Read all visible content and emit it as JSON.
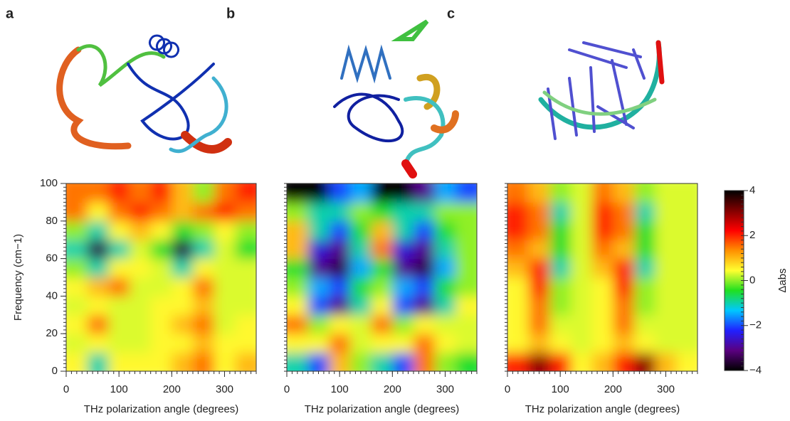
{
  "chart_data": [
    {
      "type": "heatmap",
      "panel_label": "a",
      "xlabel": "THz polarization angle (degrees)",
      "ylabel": "Frequency (cm−1)",
      "x_bins": [
        0,
        40,
        80,
        120,
        160,
        200,
        240,
        280,
        320,
        360
      ],
      "y_bins": [
        0,
        10,
        20,
        30,
        40,
        50,
        60,
        70,
        80,
        90,
        100
      ],
      "xlim": [
        0,
        360
      ],
      "xticks": [
        0,
        100,
        200,
        300
      ],
      "ylim": [
        0,
        100
      ],
      "yticks": [
        0,
        20,
        40,
        60,
        80,
        100
      ],
      "values": [
        [
          0.5,
          -1,
          0.5,
          0.5,
          0.5,
          1,
          1.5,
          0.5,
          1
        ],
        [
          0.3,
          0.5,
          0.3,
          0.3,
          0.5,
          0.5,
          1,
          0.5,
          0.5
        ],
        [
          0.5,
          1.5,
          0.3,
          0.3,
          0.5,
          1,
          1.5,
          0.3,
          0.5
        ],
        [
          0.3,
          0.5,
          0.3,
          0.3,
          0.5,
          0.5,
          1,
          0.3,
          0.3
        ],
        [
          0.5,
          1,
          1.5,
          0.3,
          0.3,
          0.5,
          1.5,
          0.3,
          0.3
        ],
        [
          0,
          -1,
          0.5,
          0.5,
          0.3,
          -1,
          0.5,
          0.3,
          0.3
        ],
        [
          -1,
          -3.5,
          -1,
          0.3,
          -0.5,
          -3.5,
          -1,
          0.3,
          -0.5
        ],
        [
          0,
          -1,
          0.5,
          1,
          0.5,
          -0.5,
          0,
          0.5,
          0
        ],
        [
          1.5,
          0.5,
          1.5,
          2,
          1.5,
          1,
          1.5,
          2,
          1.5
        ],
        [
          1.5,
          1.5,
          2,
          1.5,
          2,
          1,
          0,
          1.5,
          2
        ]
      ]
    },
    {
      "type": "heatmap",
      "panel_label": "b",
      "xlabel": "THz polarization angle (degrees)",
      "x_bins": [
        0,
        40,
        80,
        120,
        160,
        200,
        240,
        280,
        320,
        360
      ],
      "y_bins": [
        0,
        10,
        20,
        30,
        40,
        50,
        60,
        70,
        80,
        90,
        100
      ],
      "xlim": [
        0,
        360
      ],
      "xticks": [
        0,
        100,
        200,
        300
      ],
      "ylim": [
        0,
        100
      ],
      "values": [
        [
          -1,
          -2,
          1,
          0,
          -1,
          -2,
          1.5,
          0,
          -0.5
        ],
        [
          0.5,
          0.5,
          1.5,
          0.3,
          0.5,
          0.5,
          1.5,
          0.5,
          0.3
        ],
        [
          1.5,
          0,
          0.5,
          0.3,
          1.5,
          0,
          0.5,
          0.3,
          0.3
        ],
        [
          0.5,
          -2,
          -3,
          -1,
          0.5,
          -2,
          -3,
          -1,
          0.5
        ],
        [
          0,
          -1.5,
          -2,
          -0.5,
          0,
          -1.5,
          -2,
          -0.5,
          0
        ],
        [
          -0.5,
          -3,
          -3.5,
          -1.5,
          -0.5,
          -3,
          -3.5,
          -1.5,
          0
        ],
        [
          1,
          -2.5,
          -3,
          -1,
          1.5,
          -2.5,
          -3,
          -1,
          0
        ],
        [
          1,
          -1,
          -2,
          -0.5,
          1,
          -1,
          -2,
          -0.5,
          0
        ],
        [
          0,
          -1,
          -1,
          0,
          -0.5,
          -1,
          -1,
          0,
          0
        ],
        [
          -4,
          -4,
          -2,
          -1.5,
          -4,
          -4,
          -3,
          -1.5,
          -2
        ]
      ]
    },
    {
      "type": "heatmap",
      "panel_label": "c",
      "xlabel": "THz polarization angle (degrees)",
      "x_bins": [
        0,
        40,
        80,
        120,
        160,
        200,
        240,
        280,
        320,
        360
      ],
      "y_bins": [
        0,
        10,
        20,
        30,
        40,
        50,
        60,
        70,
        80,
        90,
        100
      ],
      "xlim": [
        0,
        360
      ],
      "xticks": [
        0,
        100,
        200,
        300
      ],
      "ylim": [
        0,
        100
      ],
      "values": [
        [
          2,
          3,
          2,
          0.5,
          1,
          2,
          3,
          1,
          0.5
        ],
        [
          0.5,
          1,
          0.5,
          0.3,
          0.5,
          1,
          0.5,
          0.3,
          0.3
        ],
        [
          0.5,
          1.5,
          0.3,
          0.3,
          0.5,
          1.5,
          0.3,
          0.3,
          0.3
        ],
        [
          0.5,
          1.5,
          0,
          0.3,
          0.5,
          1.5,
          0,
          0.3,
          0.3
        ],
        [
          0.5,
          2,
          0,
          0.3,
          0.5,
          2,
          0,
          0.3,
          0.3
        ],
        [
          1,
          2,
          -1,
          0.3,
          1,
          2,
          -1,
          0.3,
          0.3
        ],
        [
          1.5,
          1,
          -0.5,
          0.3,
          1.5,
          1,
          -0.5,
          0.3,
          0.3
        ],
        [
          2,
          1.5,
          -0.5,
          0.3,
          2,
          1.5,
          -0.5,
          0.3,
          0.3
        ],
        [
          2,
          1.5,
          -1,
          0.3,
          2,
          1.5,
          -1,
          0.3,
          0.3
        ],
        [
          1.5,
          1,
          0,
          0.3,
          1.5,
          1,
          0,
          0.3,
          0.3
        ]
      ],
      "colorbar": {
        "label": "Δabs",
        "lim": [
          -4,
          4
        ],
        "ticks": [
          4,
          2,
          0,
          {
            "value": -2,
            "label": "−2"
          },
          {
            "value": -4,
            "label": "−4"
          }
        ],
        "colors": [
          "#000000",
          "#5a0080",
          "#2020ff",
          "#00c8ff",
          "#20e020",
          "#ffff30",
          "#ff9000",
          "#ff0000",
          "#800000",
          "#000000"
        ]
      }
    }
  ]
}
